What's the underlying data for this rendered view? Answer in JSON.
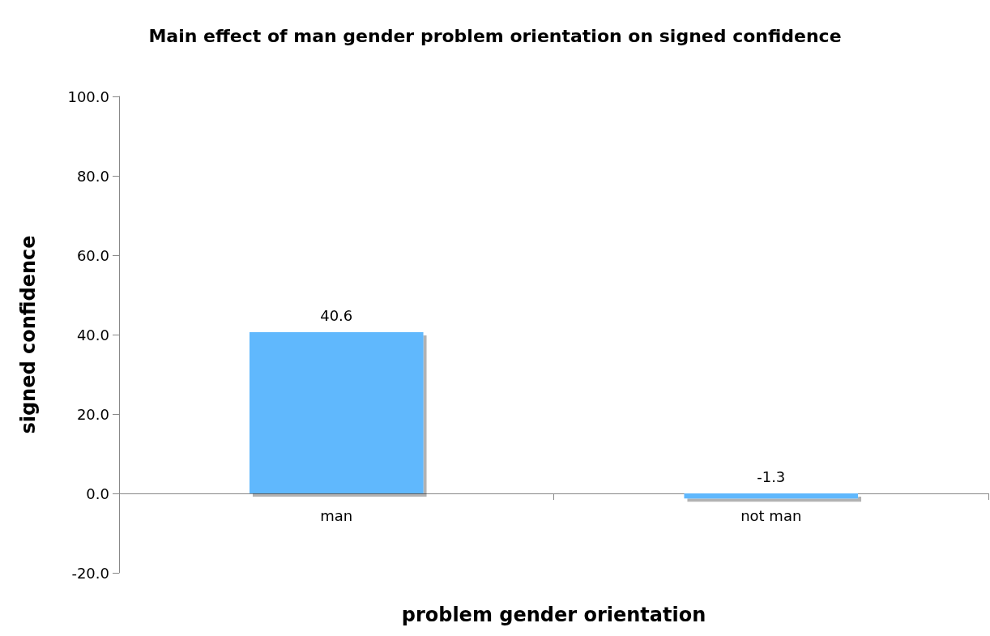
{
  "chart_data": {
    "type": "bar",
    "title": "Main effect of man gender problem orientation on signed confidence",
    "xlabel": "problem gender orientation",
    "ylabel": "signed confidence",
    "categories": [
      "man",
      "not man"
    ],
    "values": [
      40.6,
      -1.3
    ],
    "color": "#61b8fd",
    "ylim": [
      -20,
      100
    ],
    "yticks": [
      {
        "value": -20,
        "label": "-20.0"
      },
      {
        "value": 0,
        "label": "0.0"
      },
      {
        "value": 20,
        "label": "20.0"
      },
      {
        "value": 40,
        "label": "40.0"
      },
      {
        "value": 60,
        "label": "60.0"
      },
      {
        "value": 80,
        "label": "80.0"
      },
      {
        "value": 100,
        "label": "100.0"
      }
    ],
    "data_labels": true
  }
}
